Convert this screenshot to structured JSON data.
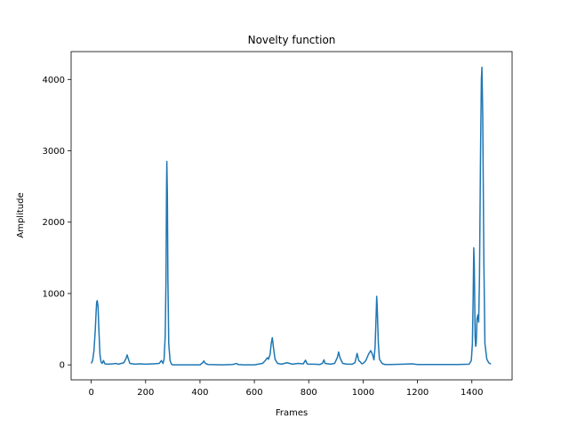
{
  "chart_data": {
    "type": "line",
    "title": "Novelty function",
    "xlabel": "Frames",
    "ylabel": "Amplitude",
    "xlim": [
      -74,
      1548
    ],
    "ylim": [
      -210,
      4390
    ],
    "xticks": [
      0,
      200,
      400,
      600,
      800,
      1000,
      1200,
      1400
    ],
    "yticks": [
      0,
      1000,
      2000,
      3000,
      4000
    ],
    "grid": false,
    "series": [
      {
        "color": "#1f77b4",
        "points": [
          [
            0,
            20
          ],
          [
            5,
            60
          ],
          [
            10,
            200
          ],
          [
            15,
            500
          ],
          [
            18,
            750
          ],
          [
            20,
            880
          ],
          [
            22,
            900
          ],
          [
            25,
            820
          ],
          [
            28,
            500
          ],
          [
            32,
            150
          ],
          [
            36,
            40
          ],
          [
            40,
            20
          ],
          [
            45,
            60
          ],
          [
            50,
            15
          ],
          [
            60,
            10
          ],
          [
            80,
            15
          ],
          [
            90,
            20
          ],
          [
            100,
            10
          ],
          [
            120,
            30
          ],
          [
            128,
            90
          ],
          [
            132,
            140
          ],
          [
            136,
            90
          ],
          [
            142,
            20
          ],
          [
            160,
            10
          ],
          [
            180,
            15
          ],
          [
            200,
            10
          ],
          [
            230,
            15
          ],
          [
            250,
            20
          ],
          [
            258,
            60
          ],
          [
            264,
            20
          ],
          [
            268,
            80
          ],
          [
            272,
            400
          ],
          [
            275,
            1200
          ],
          [
            277,
            2500
          ],
          [
            278,
            2850
          ],
          [
            280,
            2400
          ],
          [
            282,
            1200
          ],
          [
            285,
            300
          ],
          [
            290,
            60
          ],
          [
            295,
            10
          ],
          [
            300,
            0
          ],
          [
            320,
            0
          ],
          [
            360,
            0
          ],
          [
            400,
            0
          ],
          [
            410,
            30
          ],
          [
            414,
            55
          ],
          [
            420,
            20
          ],
          [
            430,
            5
          ],
          [
            480,
            0
          ],
          [
            520,
            5
          ],
          [
            535,
            20
          ],
          [
            540,
            5
          ],
          [
            560,
            0
          ],
          [
            600,
            0
          ],
          [
            630,
            20
          ],
          [
            640,
            60
          ],
          [
            648,
            100
          ],
          [
            652,
            80
          ],
          [
            658,
            150
          ],
          [
            662,
            300
          ],
          [
            666,
            380
          ],
          [
            670,
            250
          ],
          [
            676,
            80
          ],
          [
            685,
            20
          ],
          [
            700,
            10
          ],
          [
            720,
            30
          ],
          [
            740,
            10
          ],
          [
            760,
            20
          ],
          [
            780,
            15
          ],
          [
            788,
            65
          ],
          [
            794,
            15
          ],
          [
            800,
            10
          ],
          [
            820,
            10
          ],
          [
            840,
            5
          ],
          [
            850,
            20
          ],
          [
            856,
            70
          ],
          [
            860,
            20
          ],
          [
            880,
            10
          ],
          [
            895,
            20
          ],
          [
            905,
            100
          ],
          [
            910,
            180
          ],
          [
            915,
            100
          ],
          [
            925,
            20
          ],
          [
            940,
            10
          ],
          [
            960,
            10
          ],
          [
            970,
            30
          ],
          [
            978,
            160
          ],
          [
            984,
            60
          ],
          [
            990,
            40
          ],
          [
            995,
            15
          ],
          [
            1000,
            20
          ],
          [
            1010,
            60
          ],
          [
            1020,
            150
          ],
          [
            1028,
            200
          ],
          [
            1035,
            140
          ],
          [
            1040,
            70
          ],
          [
            1044,
            250
          ],
          [
            1048,
            700
          ],
          [
            1050,
            960
          ],
          [
            1052,
            800
          ],
          [
            1056,
            300
          ],
          [
            1060,
            80
          ],
          [
            1070,
            20
          ],
          [
            1080,
            5
          ],
          [
            1100,
            5
          ],
          [
            1150,
            10
          ],
          [
            1180,
            15
          ],
          [
            1190,
            10
          ],
          [
            1200,
            5
          ],
          [
            1250,
            5
          ],
          [
            1300,
            5
          ],
          [
            1350,
            5
          ],
          [
            1390,
            10
          ],
          [
            1398,
            60
          ],
          [
            1402,
            300
          ],
          [
            1405,
            1000
          ],
          [
            1407,
            1640
          ],
          [
            1409,
            1400
          ],
          [
            1412,
            400
          ],
          [
            1414,
            260
          ],
          [
            1416,
            300
          ],
          [
            1419,
            650
          ],
          [
            1422,
            700
          ],
          [
            1425,
            600
          ],
          [
            1428,
            1200
          ],
          [
            1432,
            3000
          ],
          [
            1435,
            4000
          ],
          [
            1437,
            4170
          ],
          [
            1440,
            3500
          ],
          [
            1444,
            1500
          ],
          [
            1448,
            300
          ],
          [
            1455,
            80
          ],
          [
            1462,
            30
          ],
          [
            1470,
            10
          ]
        ]
      }
    ]
  }
}
